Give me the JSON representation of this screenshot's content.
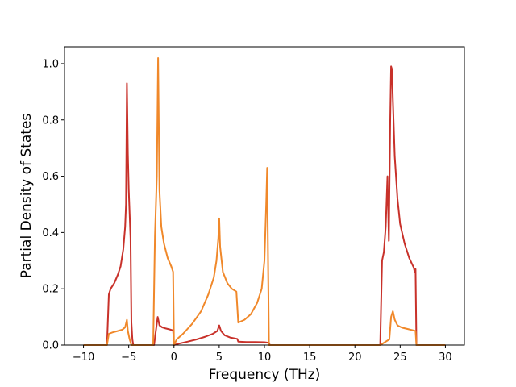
{
  "chart_data": {
    "type": "line",
    "xlabel": "Frequency (THz)",
    "ylabel": "Partial Density of States",
    "xlim": [
      -12.1,
      32.1
    ],
    "ylim": [
      0.0,
      1.06
    ],
    "xticks": [
      -10,
      -5,
      0,
      5,
      10,
      15,
      20,
      25,
      30
    ],
    "xtick_labels": [
      "−10",
      "−5",
      "0",
      "5",
      "10",
      "15",
      "20",
      "25",
      "30"
    ],
    "yticks": [
      0.0,
      0.2,
      0.4,
      0.6,
      0.8,
      1.0
    ],
    "ytick_labels": [
      "0.0",
      "0.2",
      "0.4",
      "0.6",
      "0.8",
      "1.0"
    ],
    "grid": false,
    "series": [
      {
        "color": "#c8312a",
        "points": [
          [
            -10.0,
            0.0
          ],
          [
            -7.4,
            0.0
          ],
          [
            -7.2,
            0.18
          ],
          [
            -7.0,
            0.2
          ],
          [
            -6.6,
            0.22
          ],
          [
            -6.2,
            0.25
          ],
          [
            -5.9,
            0.28
          ],
          [
            -5.6,
            0.34
          ],
          [
            -5.4,
            0.42
          ],
          [
            -5.3,
            0.5
          ],
          [
            -5.2,
            0.93
          ],
          [
            -5.1,
            0.68
          ],
          [
            -5.0,
            0.55
          ],
          [
            -4.8,
            0.38
          ],
          [
            -4.7,
            0.08
          ],
          [
            -4.6,
            0.02
          ],
          [
            -4.5,
            0.0
          ],
          [
            -2.2,
            0.0
          ],
          [
            -2.0,
            0.05
          ],
          [
            -1.8,
            0.1
          ],
          [
            -1.6,
            0.07
          ],
          [
            -1.3,
            0.063
          ],
          [
            -1.0,
            0.06
          ],
          [
            -0.5,
            0.056
          ],
          [
            -0.1,
            0.052
          ],
          [
            0.0,
            0.0
          ],
          [
            0.5,
            0.005
          ],
          [
            1.5,
            0.012
          ],
          [
            2.5,
            0.02
          ],
          [
            3.5,
            0.03
          ],
          [
            4.3,
            0.04
          ],
          [
            4.8,
            0.05
          ],
          [
            5.0,
            0.07
          ],
          [
            5.2,
            0.05
          ],
          [
            5.6,
            0.035
          ],
          [
            6.2,
            0.027
          ],
          [
            7.0,
            0.022
          ],
          [
            7.1,
            0.012
          ],
          [
            8.0,
            0.011
          ],
          [
            9.0,
            0.011
          ],
          [
            10.0,
            0.01
          ],
          [
            10.5,
            0.008
          ],
          [
            10.6,
            0.0
          ],
          [
            22.8,
            0.0
          ],
          [
            23.0,
            0.3
          ],
          [
            23.2,
            0.33
          ],
          [
            23.4,
            0.42
          ],
          [
            23.6,
            0.6
          ],
          [
            23.75,
            0.37
          ],
          [
            23.9,
            0.8
          ],
          [
            24.0,
            0.99
          ],
          [
            24.1,
            0.98
          ],
          [
            24.2,
            0.87
          ],
          [
            24.4,
            0.67
          ],
          [
            24.7,
            0.52
          ],
          [
            25.0,
            0.43
          ],
          [
            25.5,
            0.36
          ],
          [
            26.0,
            0.31
          ],
          [
            26.5,
            0.275
          ],
          [
            26.6,
            0.26
          ],
          [
            26.7,
            0.27
          ],
          [
            26.8,
            0.0
          ],
          [
            30.0,
            0.0
          ]
        ]
      },
      {
        "color": "#f0882a",
        "points": [
          [
            -10.0,
            0.0
          ],
          [
            -7.4,
            0.0
          ],
          [
            -7.2,
            0.04
          ],
          [
            -6.8,
            0.045
          ],
          [
            -6.2,
            0.05
          ],
          [
            -5.7,
            0.055
          ],
          [
            -5.4,
            0.063
          ],
          [
            -5.2,
            0.09
          ],
          [
            -5.1,
            0.05
          ],
          [
            -4.9,
            0.02
          ],
          [
            -4.7,
            0.0
          ],
          [
            -2.3,
            0.0
          ],
          [
            -2.1,
            0.39
          ],
          [
            -1.9,
            0.6
          ],
          [
            -1.75,
            1.02
          ],
          [
            -1.6,
            0.55
          ],
          [
            -1.4,
            0.42
          ],
          [
            -1.1,
            0.36
          ],
          [
            -0.7,
            0.31
          ],
          [
            -0.3,
            0.28
          ],
          [
            -0.1,
            0.26
          ],
          [
            0.0,
            0.0
          ],
          [
            0.3,
            0.02
          ],
          [
            1.0,
            0.04
          ],
          [
            2.0,
            0.075
          ],
          [
            3.0,
            0.12
          ],
          [
            3.8,
            0.18
          ],
          [
            4.4,
            0.24
          ],
          [
            4.7,
            0.3
          ],
          [
            4.9,
            0.38
          ],
          [
            5.0,
            0.45
          ],
          [
            5.1,
            0.35
          ],
          [
            5.4,
            0.26
          ],
          [
            5.9,
            0.22
          ],
          [
            6.4,
            0.2
          ],
          [
            6.9,
            0.19
          ],
          [
            7.1,
            0.08
          ],
          [
            7.8,
            0.09
          ],
          [
            8.5,
            0.11
          ],
          [
            9.2,
            0.15
          ],
          [
            9.7,
            0.2
          ],
          [
            10.0,
            0.3
          ],
          [
            10.2,
            0.5
          ],
          [
            10.3,
            0.63
          ],
          [
            10.4,
            0.3
          ],
          [
            10.5,
            0.0
          ],
          [
            22.8,
            0.0
          ],
          [
            23.8,
            0.02
          ],
          [
            24.0,
            0.1
          ],
          [
            24.2,
            0.12
          ],
          [
            24.4,
            0.09
          ],
          [
            24.7,
            0.07
          ],
          [
            25.2,
            0.062
          ],
          [
            26.0,
            0.056
          ],
          [
            26.7,
            0.05
          ],
          [
            26.8,
            0.0
          ],
          [
            30.0,
            0.0
          ]
        ]
      }
    ]
  }
}
